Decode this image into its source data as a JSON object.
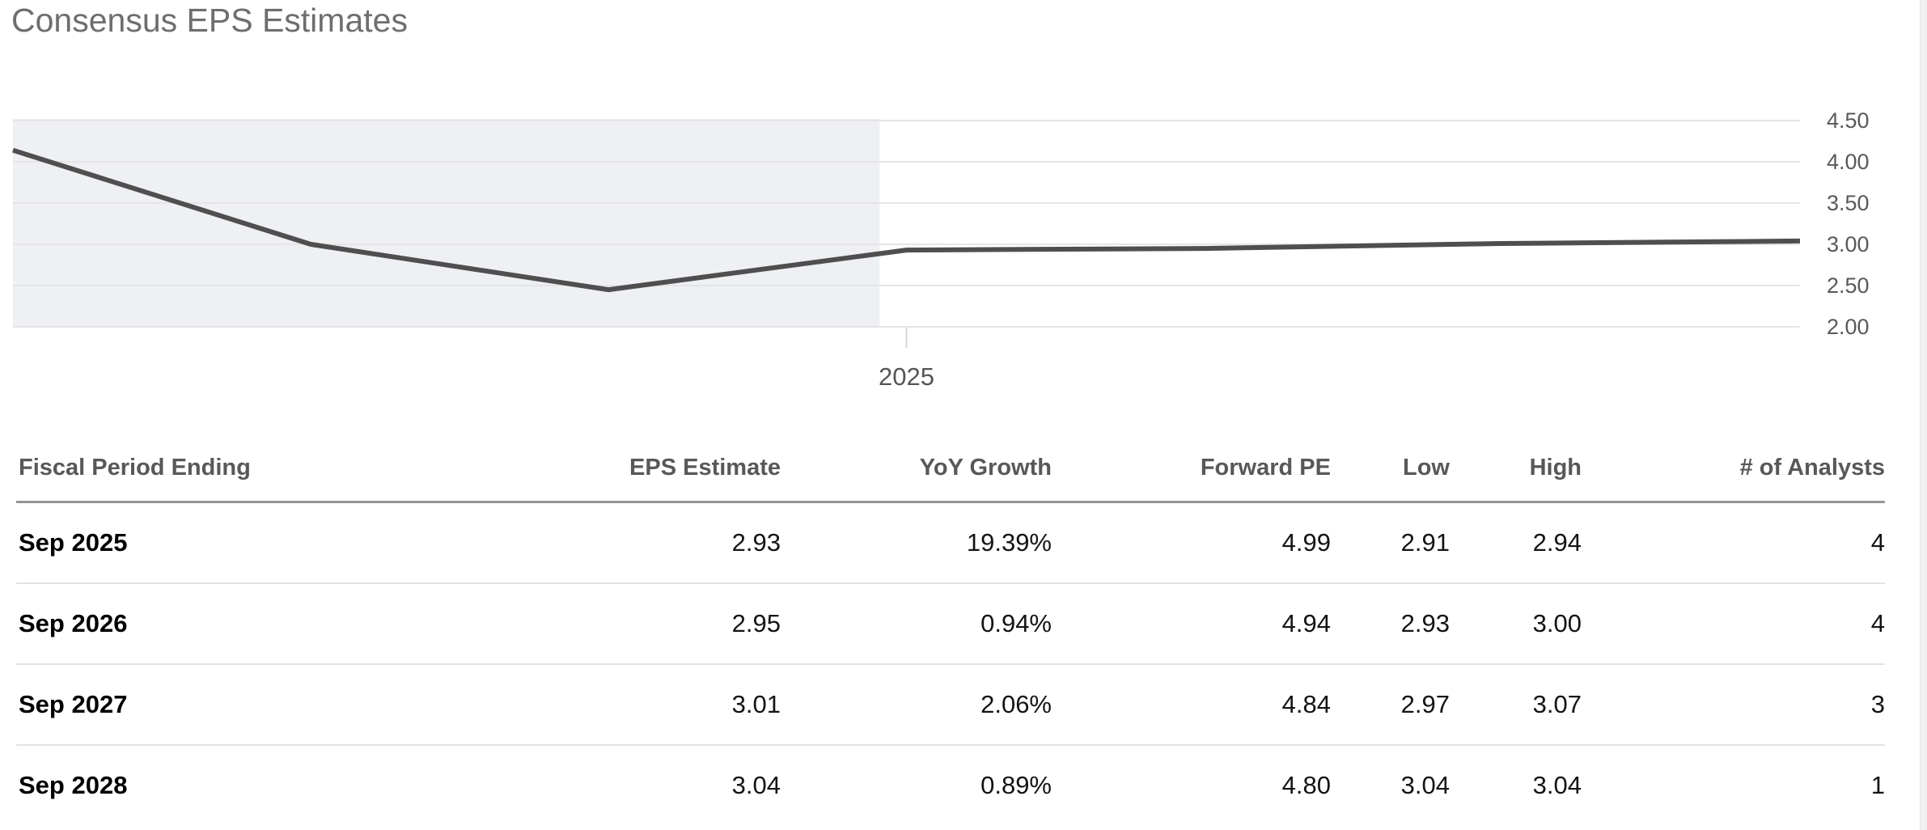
{
  "title": "Consensus EPS Estimates",
  "chart_data": {
    "type": "line",
    "title": "Consensus EPS Estimates",
    "x": [
      2022,
      2023,
      2024,
      2025,
      2026,
      2027,
      2028
    ],
    "series": [
      {
        "name": "Consensus EPS",
        "values": [
          4.14,
          3.0,
          2.45,
          2.93,
          2.95,
          3.01,
          3.04
        ]
      }
    ],
    "ylim": [
      2.0,
      4.5
    ],
    "y_ticks": [
      "4.50",
      "4.00",
      "3.50",
      "3.00",
      "2.50",
      "2.00"
    ],
    "x_tick_labels": [
      "2025"
    ],
    "x_tick_positions": [
      2025
    ],
    "shaded_region": {
      "from_year": 2022,
      "to_year": 2024.91
    },
    "grid": true,
    "legend": "none",
    "line_color": "#4f4f4f",
    "shade_color": "#eef0f4",
    "grid_color": "#e5e5e5",
    "axis_label_color": "#595959",
    "tick_mark_color": "#d4d4d4"
  },
  "table": {
    "columns": [
      "Fiscal Period Ending",
      "EPS Estimate",
      "YoY Growth",
      "Forward PE",
      "Low",
      "High",
      "# of Analysts"
    ],
    "rows": [
      [
        "Sep 2025",
        "2.93",
        "19.39%",
        "4.99",
        "2.91",
        "2.94",
        "4"
      ],
      [
        "Sep 2026",
        "2.95",
        "0.94%",
        "4.94",
        "2.93",
        "3.00",
        "4"
      ],
      [
        "Sep 2027",
        "3.01",
        "2.06%",
        "4.84",
        "2.97",
        "3.07",
        "3"
      ],
      [
        "Sep 2028",
        "3.04",
        "0.89%",
        "4.80",
        "3.04",
        "3.04",
        "1"
      ]
    ]
  },
  "colors": {
    "title_text": "#6e6e6e",
    "header_text": "#585858",
    "body_text": "#141414",
    "header_rule": "#959595",
    "row_rule": "#e3e3e3"
  }
}
